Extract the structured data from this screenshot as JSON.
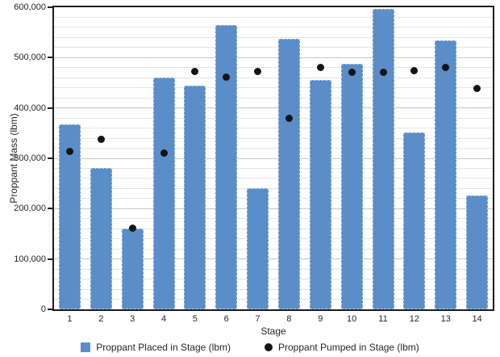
{
  "chart_data": {
    "type": "bar",
    "title": "",
    "xlabel": "Stage",
    "ylabel": "Proppant Mass (lbm)",
    "categories": [
      "1",
      "2",
      "3",
      "4",
      "5",
      "6",
      "7",
      "8",
      "9",
      "10",
      "11",
      "12",
      "13",
      "14"
    ],
    "series": [
      {
        "name": "Proppant Placed in Stage (lbm)",
        "type": "bar",
        "color": "#5B8DC9",
        "values": [
          368000,
          281000,
          160000,
          461000,
          444000,
          564000,
          241000,
          538000,
          455000,
          488000,
          597000,
          351000,
          534000,
          227000
        ]
      },
      {
        "name": "Proppant Pumped in Stage (lbm)",
        "type": "scatter",
        "color": "#141414",
        "values": [
          313000,
          337000,
          162000,
          310000,
          472000,
          461000,
          472000,
          380000,
          481000,
          471000,
          471000,
          474000,
          480000,
          439000
        ]
      }
    ],
    "ylim": [
      0,
      600000
    ],
    "y_major_step": 100000,
    "y_minor_step": 20000,
    "grid": true,
    "legend_position": "bottom"
  },
  "colors": {
    "bar": "#5B8DC9",
    "bar_border": "#B8CFE9",
    "dot": "#141414",
    "grid_minor": "#E4E4E4",
    "grid_major": "#C8C8C8",
    "plot_border": "#1D1D1D",
    "text": "#262626",
    "background": "#FFFFFF"
  }
}
